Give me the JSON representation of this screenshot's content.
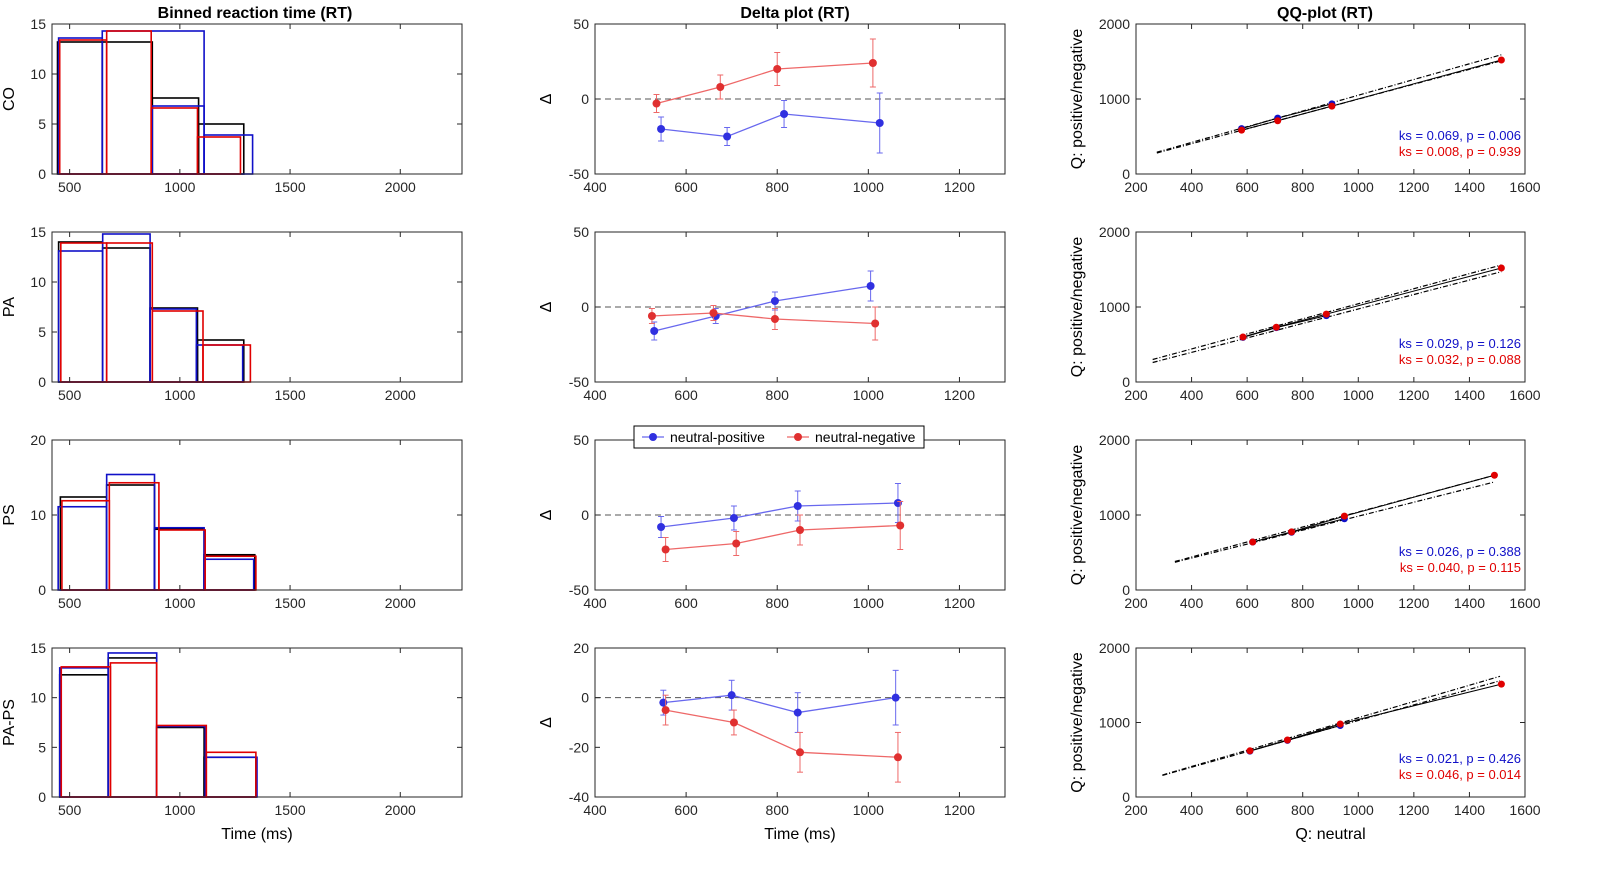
{
  "figure": {
    "col_titles": [
      "Binned reaction time (RT)",
      "Delta plot (RT)",
      "QQ-plot (RT)"
    ],
    "row_labels": [
      "CO",
      "PA",
      "PS",
      "PA-PS"
    ],
    "xlabels": [
      "Time (ms)",
      "Time (ms)",
      "Q: neutral"
    ],
    "delta_ylabel": "Δ",
    "qq_ylabel": "Q: positive/negative",
    "legend": {
      "entries": [
        "neutral-positive",
        "neutral-negative"
      ]
    },
    "colors": {
      "black": "#000000",
      "blue": "#1010c8",
      "red": "#e00000",
      "delta_blue": "#3030e0",
      "delta_red": "#e03030",
      "delta_blue_line": "#6868ee",
      "delta_red_line": "#ee6868"
    }
  },
  "chart_data": [
    {
      "type": "bar",
      "row": 0,
      "col": 0,
      "title": "Binned reaction time (RT)",
      "ylabel": "CO",
      "xlabel": "",
      "xlim": [
        420,
        2280
      ],
      "ylim": [
        0,
        15
      ],
      "xticks": [
        500,
        1000,
        1500,
        2000
      ],
      "yticks": [
        0,
        5,
        10,
        15
      ],
      "series": [
        {
          "name": "neutral",
          "color": "black",
          "bins": [
            [
              445,
              648,
              13.2
            ],
            [
              648,
              875,
              13.2
            ],
            [
              875,
              1085,
              7.6
            ],
            [
              1085,
              1290,
              5.0
            ]
          ]
        },
        {
          "name": "positive",
          "color": "blue",
          "bins": [
            [
              450,
              648,
              13.6
            ],
            [
              648,
              1110,
              14.3
            ],
            [
              875,
              1110,
              6.8
            ],
            [
              1110,
              1330,
              3.9
            ]
          ]
        },
        {
          "name": "negative",
          "color": "red",
          "bins": [
            [
              455,
              668,
              13.4
            ],
            [
              668,
              870,
              14.3
            ],
            [
              870,
              1080,
              6.6
            ],
            [
              1080,
              1275,
              3.7
            ]
          ]
        }
      ]
    },
    {
      "type": "bar",
      "row": 1,
      "col": 0,
      "title": "",
      "ylabel": "PA",
      "xlabel": "",
      "xlim": [
        420,
        2280
      ],
      "ylim": [
        0,
        15
      ],
      "xticks": [
        500,
        1000,
        1500,
        2000
      ],
      "yticks": [
        0,
        5,
        10,
        15
      ],
      "series": [
        {
          "name": "neutral",
          "color": "black",
          "bins": [
            [
              450,
              650,
              14.0
            ],
            [
              650,
              865,
              13.4
            ],
            [
              865,
              1080,
              7.4
            ],
            [
              1080,
              1290,
              4.2
            ]
          ]
        },
        {
          "name": "positive",
          "color": "blue",
          "bins": [
            [
              450,
              650,
              13.1
            ],
            [
              650,
              865,
              14.8
            ],
            [
              865,
              1075,
              7.3
            ],
            [
              1075,
              1285,
              3.7
            ]
          ]
        },
        {
          "name": "negative",
          "color": "red",
          "bins": [
            [
              460,
              668,
              13.9
            ],
            [
              668,
              875,
              13.9
            ],
            [
              875,
              1105,
              7.1
            ],
            [
              1105,
              1320,
              3.7
            ]
          ]
        }
      ]
    },
    {
      "type": "bar",
      "row": 2,
      "col": 0,
      "title": "",
      "ylabel": "PS",
      "xlabel": "",
      "xlim": [
        420,
        2280
      ],
      "ylim": [
        0,
        20
      ],
      "xticks": [
        500,
        1000,
        1500,
        2000
      ],
      "yticks": [
        0,
        10,
        20
      ],
      "series": [
        {
          "name": "neutral",
          "color": "black",
          "bins": [
            [
              458,
              668,
              12.4
            ],
            [
              668,
              885,
              14.0
            ],
            [
              885,
              1110,
              8.1
            ],
            [
              1110,
              1340,
              4.7
            ]
          ]
        },
        {
          "name": "positive",
          "color": "blue",
          "bins": [
            [
              448,
              668,
              11.1
            ],
            [
              668,
              885,
              15.4
            ],
            [
              885,
              1110,
              8.3
            ],
            [
              1110,
              1335,
              4.1
            ]
          ]
        },
        {
          "name": "negative",
          "color": "red",
          "bins": [
            [
              465,
              680,
              11.9
            ],
            [
              680,
              905,
              14.3
            ],
            [
              905,
              1115,
              8.0
            ],
            [
              1115,
              1345,
              4.5
            ]
          ]
        }
      ]
    },
    {
      "type": "bar",
      "row": 3,
      "col": 0,
      "title": "",
      "ylabel": "PA-PS",
      "xlabel": "Time (ms)",
      "xlim": [
        420,
        2280
      ],
      "ylim": [
        0,
        15
      ],
      "xticks": [
        500,
        1000,
        1500,
        2000
      ],
      "yticks": [
        0,
        5,
        10,
        15
      ],
      "series": [
        {
          "name": "neutral",
          "color": "black",
          "bins": [
            [
              455,
              675,
              12.3
            ],
            [
              675,
              895,
              14.0
            ],
            [
              895,
              1110,
              7.0
            ],
            [
              1110,
              1345,
              4.0
            ]
          ]
        },
        {
          "name": "positive",
          "color": "blue",
          "bins": [
            [
              455,
              675,
              13.0
            ],
            [
              675,
              895,
              14.5
            ],
            [
              895,
              1115,
              7.1
            ],
            [
              1115,
              1350,
              4.0
            ]
          ]
        },
        {
          "name": "negative",
          "color": "red",
          "bins": [
            [
              462,
              685,
              13.1
            ],
            [
              685,
              895,
              13.5
            ],
            [
              895,
              1120,
              7.2
            ],
            [
              1120,
              1345,
              4.5
            ]
          ]
        }
      ]
    },
    {
      "type": "line",
      "row": 0,
      "col": 1,
      "title": "Delta plot (RT)",
      "ylabel": "Δ",
      "xlabel": "",
      "xlim": [
        400,
        1300
      ],
      "ylim": [
        -50,
        50
      ],
      "xticks": [
        400,
        600,
        800,
        1000,
        1200
      ],
      "yticks": [
        -50,
        0,
        50
      ],
      "series": [
        {
          "name": "neutral-positive",
          "color": "delta_blue",
          "x": [
            545,
            690,
            815,
            1025
          ],
          "y": [
            -20,
            -25,
            -10,
            -16
          ],
          "err": [
            8,
            6,
            9,
            20
          ]
        },
        {
          "name": "neutral-negative",
          "color": "delta_red",
          "x": [
            535,
            675,
            800,
            1010
          ],
          "y": [
            -3,
            8,
            20,
            24
          ],
          "err": [
            6,
            8,
            11,
            16
          ]
        }
      ]
    },
    {
      "type": "line",
      "row": 1,
      "col": 1,
      "title": "",
      "ylabel": "Δ",
      "xlabel": "",
      "xlim": [
        400,
        1300
      ],
      "ylim": [
        -50,
        50
      ],
      "xticks": [
        400,
        600,
        800,
        1000,
        1200
      ],
      "yticks": [
        -50,
        0,
        50
      ],
      "series": [
        {
          "name": "neutral-positive",
          "color": "delta_blue",
          "x": [
            530,
            665,
            795,
            1005
          ],
          "y": [
            -16,
            -6,
            4,
            14
          ],
          "err": [
            6,
            5,
            6,
            10
          ]
        },
        {
          "name": "neutral-negative",
          "color": "delta_red",
          "x": [
            525,
            660,
            795,
            1015
          ],
          "y": [
            -6,
            -4,
            -8,
            -11
          ],
          "err": [
            5,
            5,
            7,
            11
          ]
        }
      ]
    },
    {
      "type": "line",
      "row": 2,
      "col": 1,
      "title": "",
      "ylabel": "Δ",
      "xlabel": "",
      "xlim": [
        400,
        1300
      ],
      "ylim": [
        -50,
        50
      ],
      "xticks": [
        400,
        600,
        800,
        1000,
        1200
      ],
      "yticks": [
        -50,
        0,
        50
      ],
      "series": [
        {
          "name": "neutral-positive",
          "color": "delta_blue",
          "x": [
            545,
            705,
            845,
            1065
          ],
          "y": [
            -8,
            -2,
            6,
            8
          ],
          "err": [
            7,
            8,
            10,
            13
          ]
        },
        {
          "name": "neutral-negative",
          "color": "delta_red",
          "x": [
            555,
            710,
            850,
            1070
          ],
          "y": [
            -23,
            -19,
            -10,
            -7
          ],
          "err": [
            8,
            8,
            10,
            16
          ]
        }
      ]
    },
    {
      "type": "line",
      "row": 3,
      "col": 1,
      "title": "",
      "ylabel": "Δ",
      "xlabel": "Time (ms)",
      "xlim": [
        400,
        1300
      ],
      "ylim": [
        -40,
        20
      ],
      "xticks": [
        400,
        600,
        800,
        1000,
        1200
      ],
      "yticks": [
        -40,
        -20,
        0,
        20
      ],
      "series": [
        {
          "name": "neutral-positive",
          "color": "delta_blue",
          "x": [
            550,
            700,
            845,
            1060
          ],
          "y": [
            -2,
            1,
            -6,
            0
          ],
          "err": [
            5,
            6,
            8,
            11
          ]
        },
        {
          "name": "neutral-negative",
          "color": "delta_red",
          "x": [
            555,
            705,
            850,
            1065
          ],
          "y": [
            -5,
            -10,
            -22,
            -24
          ],
          "err": [
            6,
            5,
            8,
            10
          ]
        }
      ]
    },
    {
      "type": "scatter",
      "row": 0,
      "col": 2,
      "title": "QQ-plot (RT)",
      "ylabel": "Q: positive/negative",
      "xlabel": "",
      "xlim": [
        200,
        1600
      ],
      "ylim": [
        0,
        2000
      ],
      "xticks": [
        200,
        400,
        600,
        800,
        1000,
        1200,
        1400,
        1600
      ],
      "yticks": [
        0,
        1000,
        2000
      ],
      "ref_lines": [
        {
          "x": [
            275,
            1515
          ],
          "y": [
            290,
            1590
          ]
        },
        {
          "x": [
            275,
            1515
          ],
          "y": [
            280,
            1510
          ]
        }
      ],
      "series": [
        {
          "name": "neutral-positive",
          "color": "blue",
          "x": [
            580,
            710,
            905
          ],
          "y": [
            605,
            745,
            935
          ]
        },
        {
          "name": "neutral-negative",
          "color": "red",
          "x": [
            580,
            710,
            905,
            1515
          ],
          "y": [
            585,
            710,
            905,
            1520
          ]
        }
      ],
      "stats": [
        {
          "text": "ks = 0.069, p = 0.006",
          "color": "blue"
        },
        {
          "text": "ks = 0.008, p = 0.939",
          "color": "red"
        }
      ]
    },
    {
      "type": "scatter",
      "row": 1,
      "col": 2,
      "title": "",
      "ylabel": "Q: positive/negative",
      "xlabel": "",
      "xlim": [
        200,
        1600
      ],
      "ylim": [
        0,
        2000
      ],
      "xticks": [
        200,
        400,
        600,
        800,
        1000,
        1200,
        1400,
        1600
      ],
      "yticks": [
        0,
        1000,
        2000
      ],
      "ref_lines": [
        {
          "x": [
            260,
            1515
          ],
          "y": [
            300,
            1560
          ]
        },
        {
          "x": [
            260,
            1515
          ],
          "y": [
            260,
            1470
          ]
        }
      ],
      "series": [
        {
          "name": "neutral-positive",
          "color": "blue",
          "x": [
            585,
            705,
            885
          ],
          "y": [
            595,
            725,
            885
          ]
        },
        {
          "name": "neutral-negative",
          "color": "red",
          "x": [
            585,
            705,
            885,
            1515
          ],
          "y": [
            600,
            730,
            905,
            1520
          ]
        }
      ],
      "stats": [
        {
          "text": "ks = 0.029, p = 0.126",
          "color": "blue"
        },
        {
          "text": "ks = 0.032, p = 0.088",
          "color": "red"
        }
      ]
    },
    {
      "type": "scatter",
      "row": 2,
      "col": 2,
      "title": "",
      "ylabel": "Q: positive/negative",
      "xlabel": "",
      "xlim": [
        200,
        1600
      ],
      "ylim": [
        0,
        2000
      ],
      "xticks": [
        200,
        400,
        600,
        800,
        1000,
        1200,
        1400,
        1600
      ],
      "yticks": [
        0,
        1000,
        2000
      ],
      "ref_lines": [
        {
          "x": [
            340,
            1490
          ],
          "y": [
            380,
            1530
          ]
        },
        {
          "x": [
            340,
            1490
          ],
          "y": [
            370,
            1440
          ]
        }
      ],
      "series": [
        {
          "name": "neutral-positive",
          "color": "blue",
          "x": [
            620,
            760,
            950
          ],
          "y": [
            640,
            770,
            950
          ]
        },
        {
          "name": "neutral-negative",
          "color": "red",
          "x": [
            620,
            760,
            950,
            1490
          ],
          "y": [
            640,
            775,
            985,
            1530
          ]
        }
      ],
      "stats": [
        {
          "text": "ks = 0.026, p = 0.388",
          "color": "blue"
        },
        {
          "text": "ks = 0.040, p = 0.115",
          "color": "red"
        }
      ]
    },
    {
      "type": "scatter",
      "row": 3,
      "col": 2,
      "title": "",
      "ylabel": "Q: positive/negative",
      "xlabel": "Q: neutral",
      "xlim": [
        200,
        1600
      ],
      "ylim": [
        0,
        2000
      ],
      "xticks": [
        200,
        400,
        600,
        800,
        1000,
        1200,
        1400,
        1600
      ],
      "yticks": [
        0,
        1000,
        2000
      ],
      "ref_lines": [
        {
          "x": [
            295,
            1510
          ],
          "y": [
            295,
            1620
          ]
        },
        {
          "x": [
            295,
            1510
          ],
          "y": [
            290,
            1560
          ]
        }
      ],
      "series": [
        {
          "name": "neutral-positive",
          "color": "blue",
          "x": [
            610,
            745,
            935
          ],
          "y": [
            615,
            760,
            960
          ]
        },
        {
          "name": "neutral-negative",
          "color": "red",
          "x": [
            610,
            745,
            935,
            1515
          ],
          "y": [
            620,
            765,
            980,
            1515
          ]
        }
      ],
      "stats": [
        {
          "text": "ks = 0.021, p = 0.426",
          "color": "blue"
        },
        {
          "text": "ks = 0.046, p = 0.014",
          "color": "red"
        }
      ]
    }
  ]
}
